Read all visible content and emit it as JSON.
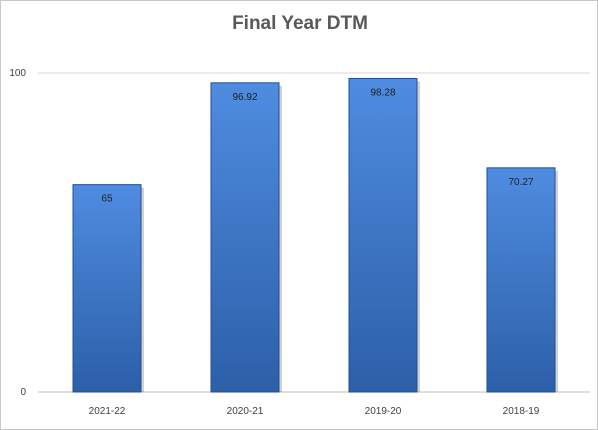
{
  "chart_data": {
    "type": "bar",
    "title": "Final Year DTM",
    "categories": [
      "2021-22",
      "2020-21",
      "2019-20",
      "2018-19"
    ],
    "values": [
      65,
      96.92,
      98.28,
      70.27
    ],
    "value_labels": [
      "65",
      "96.92",
      "98.28",
      "70.27"
    ],
    "ylim": [
      0,
      100
    ],
    "yticks": [
      "0",
      "100"
    ],
    "grid": false,
    "legend": "none",
    "colors": {
      "bar_top": "#4f8ce0",
      "bar_bottom": "#2c5fa8",
      "bar_edge": "#1f4f96",
      "axis": "#bfbfbf",
      "text": "#404040",
      "title": "#595959"
    }
  }
}
